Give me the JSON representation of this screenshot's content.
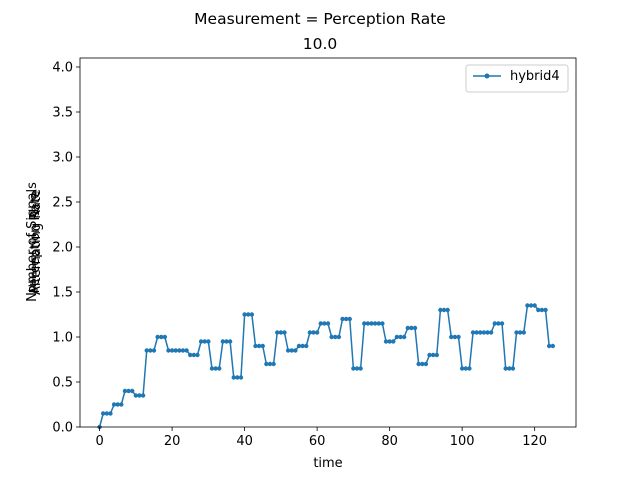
{
  "chart_data": {
    "type": "line",
    "title": "Measurement = Perception Rate",
    "subtitle": "10.0",
    "xlabel": "time",
    "ylabel_lines": [
      "Number of Signals",
      "Perception Rate",
      "Alternating Rate"
    ],
    "xlim": [
      -5.4,
      131.4
    ],
    "ylim": [
      0,
      4.1
    ],
    "xticks": [
      0,
      20,
      40,
      60,
      80,
      100,
      120
    ],
    "yticks": [
      0.0,
      0.5,
      1.0,
      1.5,
      2.0,
      2.5,
      3.0,
      3.5,
      4.0
    ],
    "ytick_labels": [
      "0.0",
      "0.5",
      "1.0",
      "1.5",
      "2.0",
      "2.5",
      "3.0",
      "3.5",
      "4.0"
    ],
    "grid": false,
    "legend_position": "top-right",
    "series": [
      {
        "name": "hybrid4",
        "color": "#1f77b4",
        "marker": "dot",
        "x": [
          0,
          1,
          2,
          3,
          4,
          5,
          6,
          7,
          8,
          9,
          10,
          11,
          12,
          13,
          14,
          15,
          16,
          17,
          18,
          19,
          20,
          21,
          22,
          23,
          24,
          25,
          26,
          27,
          28,
          29,
          30,
          31,
          32,
          33,
          34,
          35,
          36,
          37,
          38,
          39,
          40,
          41,
          42,
          43,
          44,
          45,
          46,
          47,
          48,
          49,
          50,
          51,
          52,
          53,
          54,
          55,
          56,
          57,
          58,
          59,
          60,
          61,
          62,
          63,
          64,
          65,
          66,
          67,
          68,
          69,
          70,
          71,
          72,
          73,
          74,
          75,
          76,
          77,
          78,
          79,
          80,
          81,
          82,
          83,
          84,
          85,
          86,
          87,
          88,
          89,
          90,
          91,
          92,
          93,
          94,
          95,
          96,
          97,
          98,
          99,
          100,
          101,
          102,
          103,
          104,
          105,
          106,
          107,
          108,
          109,
          110,
          111,
          112,
          113,
          114,
          115,
          116,
          117,
          118,
          119,
          120,
          121,
          122,
          123,
          124,
          125
        ],
        "y": [
          0.0,
          0.15,
          0.15,
          0.15,
          0.25,
          0.25,
          0.25,
          0.4,
          0.4,
          0.4,
          0.35,
          0.35,
          0.35,
          0.85,
          0.85,
          0.85,
          1.0,
          1.0,
          1.0,
          0.85,
          0.85,
          0.85,
          0.85,
          0.85,
          0.85,
          0.8,
          0.8,
          0.8,
          0.95,
          0.95,
          0.95,
          0.65,
          0.65,
          0.65,
          0.95,
          0.95,
          0.95,
          0.55,
          0.55,
          0.55,
          1.25,
          1.25,
          1.25,
          0.9,
          0.9,
          0.9,
          0.7,
          0.7,
          0.7,
          1.05,
          1.05,
          1.05,
          0.85,
          0.85,
          0.85,
          0.9,
          0.9,
          0.9,
          1.05,
          1.05,
          1.05,
          1.15,
          1.15,
          1.15,
          1.0,
          1.0,
          1.0,
          1.2,
          1.2,
          1.2,
          0.65,
          0.65,
          0.65,
          1.15,
          1.15,
          1.15,
          1.15,
          1.15,
          1.15,
          0.95,
          0.95,
          0.95,
          1.0,
          1.0,
          1.0,
          1.1,
          1.1,
          1.1,
          0.7,
          0.7,
          0.7,
          0.8,
          0.8,
          0.8,
          1.3,
          1.3,
          1.3,
          1.0,
          1.0,
          1.0,
          0.65,
          0.65,
          0.65,
          1.05,
          1.05,
          1.05,
          1.05,
          1.05,
          1.05,
          1.15,
          1.15,
          1.15,
          0.65,
          0.65,
          0.65,
          1.05,
          1.05,
          1.05,
          1.35,
          1.35,
          1.35,
          1.3,
          1.3,
          1.3,
          0.9,
          0.9
        ]
      }
    ]
  }
}
